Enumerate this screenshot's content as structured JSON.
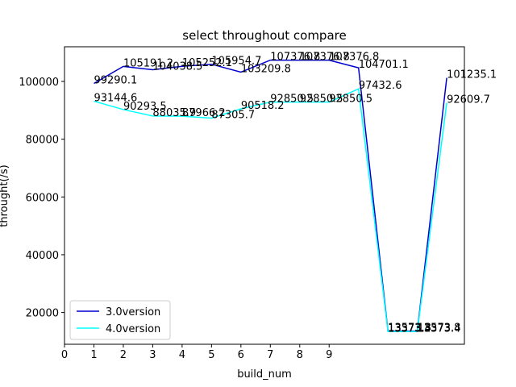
{
  "chart_data": {
    "type": "line",
    "title": "select throughout compare",
    "xlabel": "build_num",
    "ylabel": "throught(/s)",
    "x": [
      1,
      2,
      3,
      4,
      5,
      6,
      7,
      8,
      9,
      10,
      11,
      12,
      13
    ],
    "xticks": [
      "0",
      "1",
      "2",
      "3",
      "4",
      "5",
      "6",
      "7",
      "8",
      "9"
    ],
    "yticks": [
      "20000",
      "40000",
      "60000",
      "80000",
      "100000"
    ],
    "xlim": [
      0,
      13.6
    ],
    "ylim": [
      9000,
      112000
    ],
    "grid": false,
    "legend_position": "lower-left",
    "series": [
      {
        "name": "3.0version",
        "color": "#0000cd",
        "values": [
          99290.1,
          105191.2,
          104038.5,
          105252.1,
          105954.7,
          103209.8,
          107376.8,
          107376.8,
          107376.8,
          104701.1,
          13573.8,
          13573.8,
          101235.1
        ],
        "labels": [
          "99290.1",
          "105191.2",
          "104038.5",
          "105252.1",
          "105954.7",
          "103209.8",
          "107376.8",
          "107376.8",
          "107376.8",
          "104701.1",
          "13573.8",
          "13573.8",
          "101235.1"
        ]
      },
      {
        "name": "4.0version",
        "color": "#00ffff",
        "values": [
          93144.6,
          90293.5,
          88035.9,
          87966.2,
          87305.7,
          90518.2,
          92850.5,
          92850.5,
          92850.5,
          97432.6,
          13373.4,
          13373.4,
          92609.7
        ],
        "labels": [
          "93144.6",
          "90293.5",
          "88035.9",
          "87966.2",
          "87305.7",
          "90518.2",
          "92850.5",
          "92850.5",
          "92850.5",
          "97432.6",
          "13373.4",
          "13373.4",
          "92609.7"
        ]
      }
    ]
  }
}
